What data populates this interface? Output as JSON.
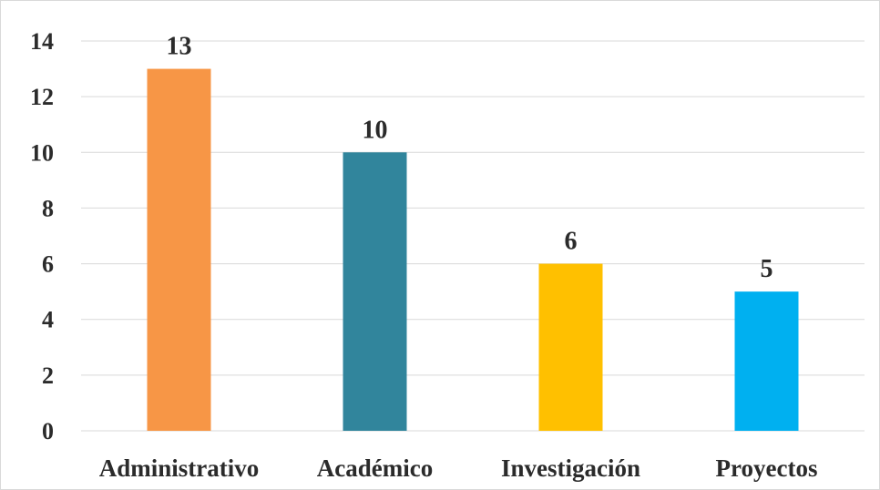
{
  "chart_data": {
    "type": "bar",
    "title": "",
    "xlabel": "",
    "ylabel": "",
    "categories": [
      "Administrativo",
      "Académico",
      "Investigación",
      "Proyectos"
    ],
    "values": [
      13,
      10,
      6,
      5
    ],
    "colors": [
      "#F79646",
      "#31859C",
      "#FFC000",
      "#00B0F0"
    ],
    "ylim": [
      0,
      14
    ],
    "yticks": [
      0,
      2,
      4,
      6,
      8,
      10,
      12,
      14
    ],
    "grid": true,
    "data_labels": true,
    "legend": "none"
  }
}
